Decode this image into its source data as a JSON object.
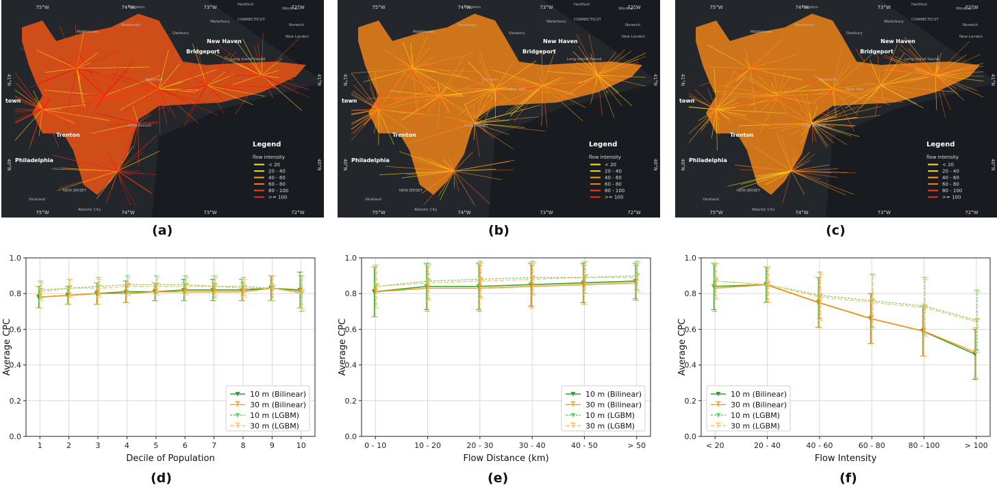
{
  "maps": [
    {
      "label": "(a)",
      "flow_color": "#ff3a10",
      "edge_color": "#ffe21a",
      "hub_color": "#e8180a",
      "base_tint": "#ff5a14",
      "top_ticks": [
        "75°W",
        "74°W",
        "73°W",
        "72°W"
      ],
      "bottom_ticks": [
        "75°W",
        "74°W",
        "73°W",
        "72°W"
      ],
      "left_ticks": [
        "41°N",
        "40°N"
      ],
      "right_ticks": [
        "41°N",
        "40°N"
      ],
      "places": [
        "Middletown",
        "Newburgh",
        "Danbury",
        "Waterbury",
        "Hartford",
        "Windham",
        "Norwich",
        "New London",
        "CONNECTICUT",
        "New Haven",
        "Bridgeport",
        "Long Island Sound",
        "Stamford",
        "town",
        "Trenton",
        "Philadelphia",
        "NEW JERSEY",
        "Vineland",
        "Atlantic City",
        "Long Branch",
        "Kingston"
      ],
      "legend": {
        "title": "Legend",
        "subtitle": "flow intensity",
        "items": [
          "< 20",
          "20 - 40",
          "40 - 60",
          "60 - 80",
          "80 - 100",
          ">= 100"
        ],
        "colors": [
          "#f6f21a",
          "#ffd21a",
          "#ffa51a",
          "#ff7a1a",
          "#ff3e1a",
          "#ff1a1a"
        ]
      }
    },
    {
      "label": "(b)",
      "flow_color": "#ff9a1c",
      "edge_color": "#ffe21a",
      "hub_color": "#ff5a14",
      "base_tint": "#ff8c18",
      "top_ticks": [
        "75°W",
        "74°W",
        "73°W",
        "72°W"
      ],
      "bottom_ticks": [
        "75°W",
        "74°W",
        "73°W",
        "72°W"
      ],
      "left_ticks": [
        "41°N",
        "40°N"
      ],
      "right_ticks": [
        "41°N",
        "40°N"
      ],
      "places": [
        "Middletown",
        "Newburgh",
        "Danbury",
        "Waterbury",
        "Hartford",
        "Windham",
        "Norwich",
        "New London",
        "CONNECTICUT",
        "New Haven",
        "Bridgeport",
        "Long Island Sound",
        "Stamford",
        "town",
        "Trenton",
        "Philadelphia",
        "NEW JERSEY",
        "Vineland",
        "Atlantic City",
        "Long Branch",
        "Kingston",
        "New York"
      ],
      "legend": {
        "title": "Legend",
        "subtitle": "flow intensity",
        "items": [
          "< 20",
          "20 - 40",
          "40 - 60",
          "60 - 80",
          "80 - 100",
          ">= 100"
        ],
        "colors": [
          "#f6f21a",
          "#ffd21a",
          "#ffa51a",
          "#ff7a1a",
          "#ff3e1a",
          "#ff1a1a"
        ]
      }
    },
    {
      "label": "(c)",
      "flow_color": "#ff9a1c",
      "edge_color": "#ffe21a",
      "hub_color": "#ff5a14",
      "base_tint": "#ff8c18",
      "top_ticks": [
        "75°W",
        "74°W",
        "73°W",
        "72°W"
      ],
      "bottom_ticks": [
        "75°W",
        "74°W",
        "73°W",
        "72°W"
      ],
      "left_ticks": [
        "41°N",
        "40°N"
      ],
      "right_ticks": [
        "41°N",
        "40°N"
      ],
      "places": [
        "Middletown",
        "Newburgh",
        "Danbury",
        "Waterbury",
        "Hartford",
        "Windham",
        "Norwich",
        "New London",
        "CONNECTICUT",
        "New Haven",
        "Bridgeport",
        "Long Island Sound",
        "Stamford",
        "town",
        "Trenton",
        "Philadelphia",
        "NEW JERSEY",
        "Vineland",
        "Atlantic City",
        "Long Branch",
        "Kingston",
        "New York"
      ],
      "legend": {
        "title": "Legend",
        "subtitle": "flow intensity",
        "items": [
          "< 20",
          "20 - 40",
          "40 - 60",
          "60 - 80",
          "80 - 100",
          ">= 100"
        ],
        "colors": [
          "#f6f21a",
          "#ffd21a",
          "#ffa51a",
          "#ff7a1a",
          "#ff3e1a",
          "#ff1a1a"
        ]
      }
    }
  ],
  "series_styles": [
    {
      "name": "10 m (Bilinear)",
      "color": "#2ca02c",
      "dash": "",
      "marker": "down-triangle"
    },
    {
      "name": "30 m (Bilinear)",
      "color": "#ff9a1a",
      "dash": "",
      "marker": "up-tick"
    },
    {
      "name": "10 m (LGBM)",
      "color": "#6fcf6f",
      "dash": "3,2",
      "marker": "down-triangle"
    },
    {
      "name": "30 m (LGBM)",
      "color": "#ffc060",
      "dash": "6,3",
      "marker": "up-tick"
    }
  ],
  "chart_data": [
    {
      "label": "(d)",
      "type": "line",
      "xlabel": "Decile of Population",
      "ylabel": "Average CPC",
      "ylim": [
        0.0,
        1.0
      ],
      "yticks": [
        "0.0",
        "0.2",
        "0.4",
        "0.6",
        "0.8",
        "1.0"
      ],
      "categories": [
        "1",
        "2",
        "3",
        "4",
        "5",
        "6",
        "7",
        "8",
        "9",
        "10"
      ],
      "legend_position": "bottom-right",
      "grid": true,
      "series": [
        {
          "name": "10 m (Bilinear)",
          "values": [
            0.78,
            0.79,
            0.8,
            0.81,
            0.81,
            0.82,
            0.82,
            0.82,
            0.83,
            0.82
          ],
          "errors": [
            0.06,
            0.05,
            0.06,
            0.06,
            0.05,
            0.06,
            0.06,
            0.06,
            0.07,
            0.1
          ]
        },
        {
          "name": "30 m (Bilinear)",
          "values": [
            0.78,
            0.79,
            0.8,
            0.8,
            0.81,
            0.81,
            0.81,
            0.81,
            0.83,
            0.81
          ],
          "errors": [
            0.06,
            0.05,
            0.06,
            0.05,
            0.05,
            0.05,
            0.05,
            0.05,
            0.07,
            0.09
          ]
        },
        {
          "name": "10 m (LGBM)",
          "values": [
            0.82,
            0.83,
            0.84,
            0.85,
            0.85,
            0.85,
            0.84,
            0.84,
            0.83,
            0.8
          ],
          "errors": [
            0.05,
            0.05,
            0.05,
            0.05,
            0.05,
            0.05,
            0.06,
            0.05,
            0.07,
            0.1
          ]
        },
        {
          "name": "30 m (LGBM)",
          "values": [
            0.81,
            0.83,
            0.83,
            0.84,
            0.84,
            0.84,
            0.84,
            0.83,
            0.83,
            0.8
          ],
          "errors": [
            0.05,
            0.05,
            0.05,
            0.05,
            0.05,
            0.05,
            0.05,
            0.05,
            0.07,
            0.09
          ]
        }
      ]
    },
    {
      "label": "(e)",
      "type": "line",
      "xlabel": "Flow Distance (km)",
      "ylabel": "Average CPC",
      "ylim": [
        0.0,
        1.0
      ],
      "yticks": [
        "0.0",
        "0.2",
        "0.4",
        "0.6",
        "0.8",
        "1.0"
      ],
      "categories": [
        "0 - 10",
        "10 - 20",
        "20 - 30",
        "30 - 40",
        "40 - 50",
        "> 50"
      ],
      "legend_position": "bottom-right",
      "grid": true,
      "series": [
        {
          "name": "10 m (Bilinear)",
          "values": [
            0.81,
            0.84,
            0.84,
            0.85,
            0.86,
            0.87
          ],
          "errors": [
            0.14,
            0.13,
            0.13,
            0.12,
            0.11,
            0.1
          ]
        },
        {
          "name": "30 m (Bilinear)",
          "values": [
            0.81,
            0.83,
            0.83,
            0.84,
            0.85,
            0.86
          ],
          "errors": [
            0.14,
            0.13,
            0.13,
            0.12,
            0.11,
            0.1
          ]
        },
        {
          "name": "10 m (LGBM)",
          "values": [
            0.84,
            0.87,
            0.88,
            0.89,
            0.89,
            0.9
          ],
          "errors": [
            0.12,
            0.1,
            0.1,
            0.09,
            0.09,
            0.08
          ]
        },
        {
          "name": "30 m (LGBM)",
          "values": [
            0.84,
            0.86,
            0.87,
            0.88,
            0.89,
            0.89
          ],
          "errors": [
            0.12,
            0.1,
            0.1,
            0.09,
            0.09,
            0.08
          ]
        }
      ]
    },
    {
      "label": "(f)",
      "type": "line",
      "xlabel": "Flow Intensity",
      "ylabel": "Average CPC",
      "ylim": [
        0.0,
        1.0
      ],
      "yticks": [
        "0.0",
        "0.2",
        "0.4",
        "0.6",
        "0.8",
        "1.0"
      ],
      "categories": [
        "< 20",
        "20 - 40",
        "40 - 60",
        "60 - 80",
        "80 - 100",
        "> 100"
      ],
      "legend_position": "bottom-left",
      "grid": true,
      "series": [
        {
          "name": "10 m (Bilinear)",
          "values": [
            0.84,
            0.85,
            0.75,
            0.66,
            0.59,
            0.46
          ],
          "errors": [
            0.13,
            0.1,
            0.14,
            0.14,
            0.14,
            0.14
          ]
        },
        {
          "name": "30 m (Bilinear)",
          "values": [
            0.83,
            0.85,
            0.75,
            0.66,
            0.59,
            0.47
          ],
          "errors": [
            0.13,
            0.1,
            0.14,
            0.14,
            0.14,
            0.14
          ]
        },
        {
          "name": "10 m (LGBM)",
          "values": [
            0.87,
            0.85,
            0.79,
            0.76,
            0.73,
            0.65
          ],
          "errors": [
            0.1,
            0.1,
            0.13,
            0.15,
            0.16,
            0.17
          ]
        },
        {
          "name": "30 m (LGBM)",
          "values": [
            0.87,
            0.85,
            0.78,
            0.75,
            0.72,
            0.64
          ],
          "errors": [
            0.1,
            0.1,
            0.13,
            0.15,
            0.16,
            0.17
          ]
        }
      ]
    }
  ]
}
